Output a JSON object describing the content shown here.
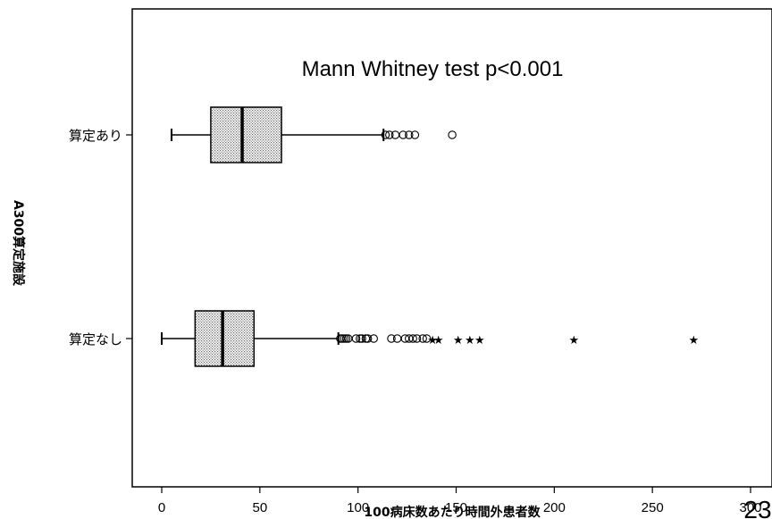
{
  "chart_data": {
    "type": "boxplot",
    "orientation": "horizontal",
    "xlabel": "100病床数あたり時間外患者数",
    "ylabel": "A300算定施設",
    "xlim": [
      -15,
      310
    ],
    "xticks": [
      0,
      50,
      100,
      150,
      200,
      250,
      300
    ],
    "annotation": "Mann Whitney test p<0.001",
    "grid": false,
    "series": [
      {
        "name": "算定あり",
        "whisker_low": 5,
        "q1": 25,
        "median": 41,
        "q3": 61,
        "whisker_high": 113,
        "outliers": [
          114,
          116,
          119,
          123,
          126,
          129,
          148
        ],
        "extremes": []
      },
      {
        "name": "算定なし",
        "whisker_low": 0,
        "q1": 17,
        "median": 31,
        "q3": 47,
        "whisker_high": 90,
        "outliers": [
          91,
          92,
          93,
          94,
          95,
          99,
          101,
          102,
          104,
          105,
          108,
          117,
          120,
          124,
          126,
          128,
          130,
          133,
          135
        ],
        "extremes": [
          138,
          141,
          151,
          157,
          162,
          210,
          271
        ]
      }
    ]
  },
  "page_number": "23",
  "colors": {
    "box_fill": "#e6e6e6",
    "line": "#000000",
    "background": "#ffffff"
  }
}
